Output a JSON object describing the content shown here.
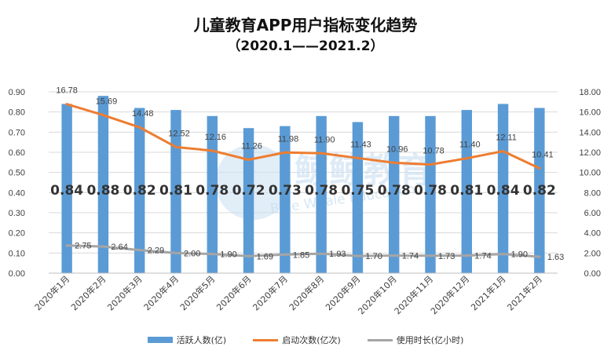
{
  "chart_data": {
    "type": "bar+line",
    "title": "儿童教育APP用户指标变化趋势",
    "subtitle": "（2020.1——2021.2）",
    "categories": [
      "2020年1月",
      "2020年2月",
      "2020年3月",
      "2020年4月",
      "2020年5月",
      "2020年6月",
      "2020年7月",
      "2020年8月",
      "2020年9月",
      "2020年10月",
      "2020年11月",
      "2020年12月",
      "2021年1月",
      "2021年2月"
    ],
    "series": [
      {
        "name": "活跃人数(亿)",
        "kind": "bar",
        "axis": "left",
        "color": "#5b9bd5",
        "values": [
          0.84,
          0.88,
          0.82,
          0.81,
          0.78,
          0.72,
          0.73,
          0.78,
          0.75,
          0.78,
          0.78,
          0.81,
          0.84,
          0.82
        ],
        "labels": [
          "0.84",
          "0.88",
          "0.82",
          "0.81",
          "0.78",
          "0.72",
          "0.73",
          "0.78",
          "0.75",
          "0.78",
          "0.78",
          "0.81",
          "0.84",
          "0.82"
        ]
      },
      {
        "name": "启动次数(亿次)",
        "kind": "line",
        "axis": "right",
        "color": "#ed7d31",
        "values": [
          16.78,
          15.69,
          14.48,
          12.52,
          12.16,
          11.26,
          11.98,
          11.9,
          11.43,
          10.96,
          10.78,
          11.4,
          12.11,
          10.41
        ],
        "labels": [
          "16.78",
          "15.69",
          "14.48",
          "12.52",
          "12.16",
          "11.26",
          "11.98",
          "11.90",
          "11.43",
          "10.96",
          "10.78",
          "11.40",
          "12.11",
          "10.41"
        ]
      },
      {
        "name": "使用时长(亿小时)",
        "kind": "line",
        "axis": "right",
        "color": "#a5a5a5",
        "values": [
          2.75,
          2.64,
          2.29,
          2.0,
          1.9,
          1.69,
          1.85,
          1.93,
          1.7,
          1.74,
          1.73,
          1.74,
          1.9,
          1.63
        ],
        "labels": [
          "2.75",
          "2.64",
          "2.29",
          "2.00",
          "1.90",
          "1.69",
          "1.85",
          "1.93",
          "1.70",
          "1.74",
          "1.73",
          "1.74",
          "1.90",
          "1.63"
        ]
      }
    ],
    "y_left": {
      "min": 0,
      "max": 0.9,
      "step": 0.1,
      "ticks": [
        "0.00",
        "0.10",
        "0.20",
        "0.30",
        "0.40",
        "0.50",
        "0.60",
        "0.70",
        "0.80",
        "0.90"
      ]
    },
    "y_right": {
      "min": 0,
      "max": 18,
      "step": 2,
      "ticks": [
        "0.00",
        "2.00",
        "4.00",
        "6.00",
        "8.00",
        "10.00",
        "12.00",
        "14.00",
        "16.00",
        "18.00"
      ]
    },
    "grid": true,
    "legend_position": "bottom",
    "watermark": "鲸鲸教育 Blue Whale Education"
  }
}
